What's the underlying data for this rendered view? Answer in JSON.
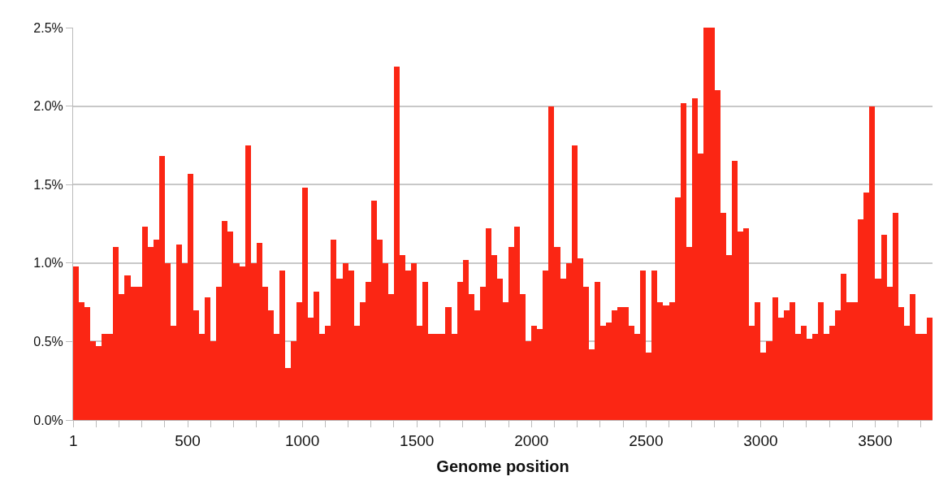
{
  "chart_data": {
    "type": "bar",
    "xlabel": "Genome position",
    "x": [
      12.5,
      37.5,
      62.5,
      87.5,
      112.5,
      137.5,
      162.5,
      187.5,
      212.5,
      237.5,
      262.5,
      287.5,
      312.5,
      337.5,
      362.5,
      387.5,
      412.5,
      437.5,
      462.5,
      487.5,
      512.5,
      537.5,
      562.5,
      587.5,
      612.5,
      637.5,
      662.5,
      687.5,
      712.5,
      737.5,
      762.5,
      787.5,
      812.5,
      837.5,
      862.5,
      887.5,
      912.5,
      937.5,
      962.5,
      987.5,
      1012.5,
      1037.5,
      1062.5,
      1087.5,
      1112.5,
      1137.5,
      1162.5,
      1187.5,
      1212.5,
      1237.5,
      1262.5,
      1287.5,
      1312.5,
      1337.5,
      1362.5,
      1387.5,
      1412.5,
      1437.5,
      1462.5,
      1487.5,
      1512.5,
      1537.5,
      1562.5,
      1587.5,
      1612.5,
      1637.5,
      1662.5,
      1687.5,
      1712.5,
      1737.5,
      1762.5,
      1787.5,
      1812.5,
      1837.5,
      1862.5,
      1887.5,
      1912.5,
      1937.5,
      1962.5,
      1987.5,
      2012.5,
      2037.5,
      2062.5,
      2087.5,
      2112.5,
      2137.5,
      2162.5,
      2187.5,
      2212.5,
      2237.5,
      2262.5,
      2287.5,
      2312.5,
      2337.5,
      2362.5,
      2387.5,
      2412.5,
      2437.5,
      2462.5,
      2487.5,
      2512.5,
      2537.5,
      2562.5,
      2587.5,
      2612.5,
      2637.5,
      2662.5,
      2687.5,
      2712.5,
      2737.5,
      2762.5,
      2787.5,
      2812.5,
      2837.5,
      2862.5,
      2887.5,
      2912.5,
      2937.5,
      2962.5,
      2987.5,
      3012.5,
      3037.5,
      3062.5,
      3087.5,
      3112.5,
      3137.5,
      3162.5,
      3187.5,
      3212.5,
      3237.5,
      3262.5,
      3287.5,
      3312.5,
      3337.5,
      3362.5,
      3387.5,
      3412.5,
      3437.5,
      3462.5,
      3487.5,
      3512.5,
      3537.5,
      3562.5,
      3587.5,
      3612.5,
      3637.5,
      3662.5,
      3687.5,
      3712.5,
      3737.5
    ],
    "values": [
      0.98,
      0.75,
      0.72,
      0.5,
      0.47,
      0.55,
      0.55,
      1.1,
      0.8,
      0.92,
      0.85,
      0.85,
      1.23,
      1.1,
      1.15,
      1.68,
      1.0,
      0.6,
      1.12,
      1.0,
      1.57,
      0.7,
      0.55,
      0.78,
      0.5,
      0.85,
      1.27,
      1.2,
      1.0,
      0.98,
      1.75,
      1.0,
      1.13,
      0.85,
      0.7,
      0.55,
      0.95,
      0.33,
      0.5,
      0.75,
      1.48,
      0.65,
      0.82,
      0.55,
      0.6,
      1.15,
      0.9,
      1.0,
      0.95,
      0.6,
      0.75,
      0.88,
      1.4,
      1.15,
      1.0,
      0.8,
      2.25,
      1.05,
      0.95,
      1.0,
      0.6,
      0.88,
      0.55,
      0.55,
      0.55,
      0.72,
      0.55,
      0.88,
      1.02,
      0.8,
      0.7,
      0.85,
      1.22,
      1.05,
      0.9,
      0.75,
      1.1,
      1.23,
      0.8,
      0.5,
      0.6,
      0.58,
      0.95,
      2.0,
      1.1,
      0.9,
      1.0,
      1.75,
      1.03,
      0.85,
      0.45,
      0.88,
      0.6,
      0.62,
      0.7,
      0.72,
      0.72,
      0.6,
      0.55,
      0.95,
      0.43,
      0.95,
      0.75,
      0.73,
      0.75,
      1.42,
      2.02,
      1.1,
      2.05,
      1.7,
      2.5,
      2.5,
      2.1,
      1.32,
      1.05,
      1.65,
      1.2,
      1.22,
      0.6,
      0.75,
      0.43,
      0.5,
      0.78,
      0.65,
      0.7,
      0.75,
      0.55,
      0.6,
      0.52,
      0.55,
      0.75,
      0.55,
      0.6,
      0.7,
      0.93,
      0.75,
      0.75,
      1.28,
      1.45,
      2.0,
      0.9,
      1.18,
      0.85,
      1.32,
      0.72,
      0.6,
      0.8,
      0.55,
      0.55,
      0.65
    ],
    "color": "#fb2614",
    "xlim": [
      0,
      3750
    ],
    "xticks": [
      1,
      {
        "value": 100,
        "label": null
      },
      {
        "value": 200,
        "label": null
      },
      {
        "value": 300,
        "label": null
      },
      {
        "value": 400,
        "label": null
      },
      500,
      {
        "value": 600,
        "label": null
      },
      {
        "value": 700,
        "label": null
      },
      {
        "value": 800,
        "label": null
      },
      {
        "value": 900,
        "label": null
      },
      1000,
      {
        "value": 1100,
        "label": null
      },
      {
        "value": 1200,
        "label": null
      },
      {
        "value": 1300,
        "label": null
      },
      {
        "value": 1400,
        "label": null
      },
      1500,
      {
        "value": 1600,
        "label": null
      },
      {
        "value": 1700,
        "label": null
      },
      {
        "value": 1800,
        "label": null
      },
      {
        "value": 1900,
        "label": null
      },
      2000,
      {
        "value": 2100,
        "label": null
      },
      {
        "value": 2200,
        "label": null
      },
      {
        "value": 2300,
        "label": null
      },
      {
        "value": 2400,
        "label": null
      },
      2500,
      {
        "value": 2600,
        "label": null
      },
      {
        "value": 2700,
        "label": null
      },
      {
        "value": 2800,
        "label": null
      },
      {
        "value": 2900,
        "label": null
      },
      3000,
      {
        "value": 3100,
        "label": null
      },
      {
        "value": 3200,
        "label": null
      },
      {
        "value": 3300,
        "label": null
      },
      {
        "value": 3400,
        "label": null
      },
      3500,
      {
        "value": 3600,
        "label": null
      },
      {
        "value": 3700,
        "label": null
      }
    ],
    "ylim": [
      0,
      2.5
    ],
    "yticks": [
      {
        "value": 0,
        "label": "0.0%"
      },
      {
        "value": 0.5,
        "label": "0.5%"
      },
      {
        "value": 1.0,
        "label": "1.0%"
      },
      {
        "value": 1.5,
        "label": "1.5%"
      },
      {
        "value": 2.0,
        "label": "2.0%"
      },
      {
        "value": 2.5,
        "label": "2.5%"
      }
    ],
    "grid": "y"
  }
}
